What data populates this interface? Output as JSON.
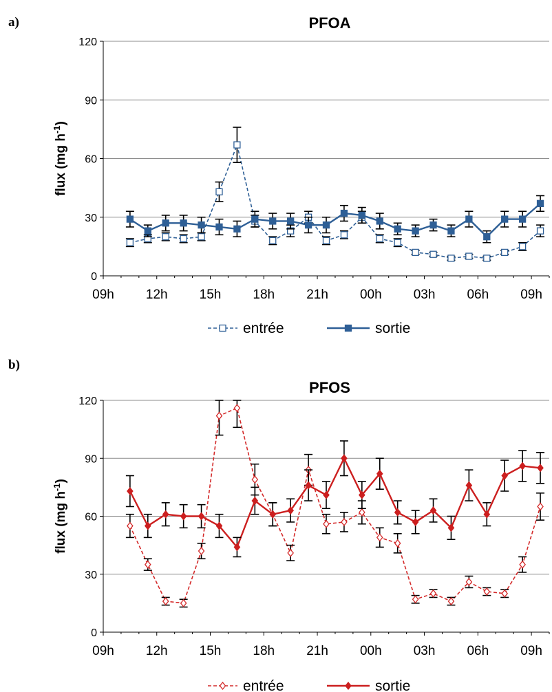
{
  "chart_data": [
    {
      "type": "line",
      "panel": "a)",
      "title": "PFOA",
      "ylabel": "flux (mg h",
      "ylabel_sup": "-1",
      "ylabel_end": ")",
      "ylim": [
        0,
        120
      ],
      "yticks": [
        "0",
        "30",
        "60",
        "90",
        "120"
      ],
      "xticks": [
        "09h",
        "12h",
        "15h",
        "18h",
        "21h",
        "00h",
        "03h",
        "06h",
        "09h"
      ],
      "grid": true,
      "legend_position": "bottom",
      "x": [
        10.5,
        11.5,
        12.5,
        13.5,
        14.5,
        15.5,
        16.5,
        17.5,
        18.5,
        19.5,
        20.5,
        21.5,
        22.5,
        23.5,
        24.5,
        25.5,
        26.5,
        27.5,
        28.5,
        29.5,
        30.5,
        31.5,
        32.5,
        33.5
      ],
      "series": [
        {
          "name": "entrée",
          "color": "#2e5f96",
          "style": "dashed",
          "marker": "open-square",
          "values": [
            17,
            19,
            20,
            19,
            20,
            43,
            67,
            28,
            18,
            23,
            30,
            18,
            21,
            30,
            19,
            17,
            12,
            11,
            9,
            10,
            9,
            12,
            15,
            23
          ],
          "errors": [
            2,
            2,
            2,
            2,
            2,
            5,
            9,
            3,
            2,
            3,
            3,
            2,
            2,
            3,
            2,
            2,
            1,
            1,
            1,
            1,
            1,
            1,
            2,
            3
          ]
        },
        {
          "name": "sortie",
          "color": "#2e5f96",
          "style": "solid",
          "marker": "filled-square",
          "values": [
            29,
            23,
            27,
            27,
            26,
            25,
            24,
            29,
            28,
            28,
            26,
            26,
            32,
            31,
            28,
            24,
            23,
            26,
            23,
            29,
            20,
            29,
            29,
            37
          ],
          "errors": [
            4,
            3,
            4,
            4,
            4,
            4,
            4,
            4,
            4,
            4,
            4,
            4,
            4,
            4,
            4,
            3,
            3,
            3,
            3,
            4,
            3,
            4,
            4,
            4
          ]
        }
      ]
    },
    {
      "type": "line",
      "panel": "b)",
      "title": "PFOS",
      "ylabel": "flux (mg h",
      "ylabel_sup": "-1",
      "ylabel_end": ")",
      "ylim": [
        0,
        120
      ],
      "yticks": [
        "0",
        "30",
        "60",
        "90",
        "120"
      ],
      "xticks": [
        "09h",
        "12h",
        "15h",
        "18h",
        "21h",
        "00h",
        "03h",
        "06h",
        "09h"
      ],
      "grid": true,
      "legend_position": "bottom",
      "x": [
        10.5,
        11.5,
        12.5,
        13.5,
        14.5,
        15.5,
        16.5,
        17.5,
        18.5,
        19.5,
        20.5,
        21.5,
        22.5,
        23.5,
        24.5,
        25.5,
        26.5,
        27.5,
        28.5,
        29.5,
        30.5,
        31.5,
        32.5,
        33.5
      ],
      "series": [
        {
          "name": "entrée",
          "color": "#d42a2a",
          "style": "dashed",
          "marker": "open-diamond",
          "values": [
            55,
            35,
            16,
            15,
            42,
            112,
            116,
            79,
            61,
            41,
            84,
            56,
            57,
            62,
            49,
            46,
            17,
            20,
            16,
            26,
            21,
            20,
            35,
            65
          ],
          "errors": [
            6,
            3,
            2,
            2,
            4,
            10,
            10,
            8,
            6,
            4,
            8,
            5,
            5,
            6,
            5,
            5,
            2,
            2,
            2,
            3,
            2,
            2,
            4,
            7
          ]
        },
        {
          "name": "sortie",
          "color": "#cc1f1f",
          "style": "solid",
          "marker": "filled-diamond",
          "values": [
            73,
            55,
            61,
            60,
            60,
            55,
            44,
            68,
            61,
            63,
            76,
            71,
            90,
            71,
            82,
            62,
            57,
            63,
            54,
            76,
            61,
            81,
            86,
            85
          ],
          "errors": [
            8,
            6,
            6,
            6,
            6,
            6,
            5,
            7,
            6,
            6,
            8,
            7,
            9,
            7,
            8,
            6,
            6,
            6,
            6,
            8,
            6,
            8,
            8,
            8
          ]
        }
      ]
    }
  ]
}
